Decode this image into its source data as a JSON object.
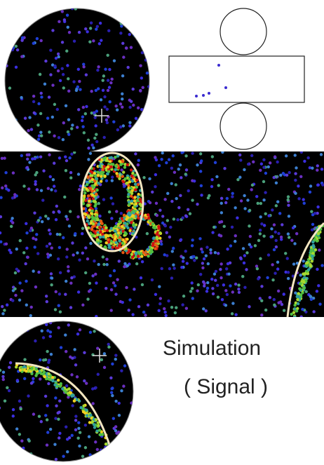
{
  "caption": {
    "line1": "Simulation",
    "line2": "( Signal )"
  }
}
